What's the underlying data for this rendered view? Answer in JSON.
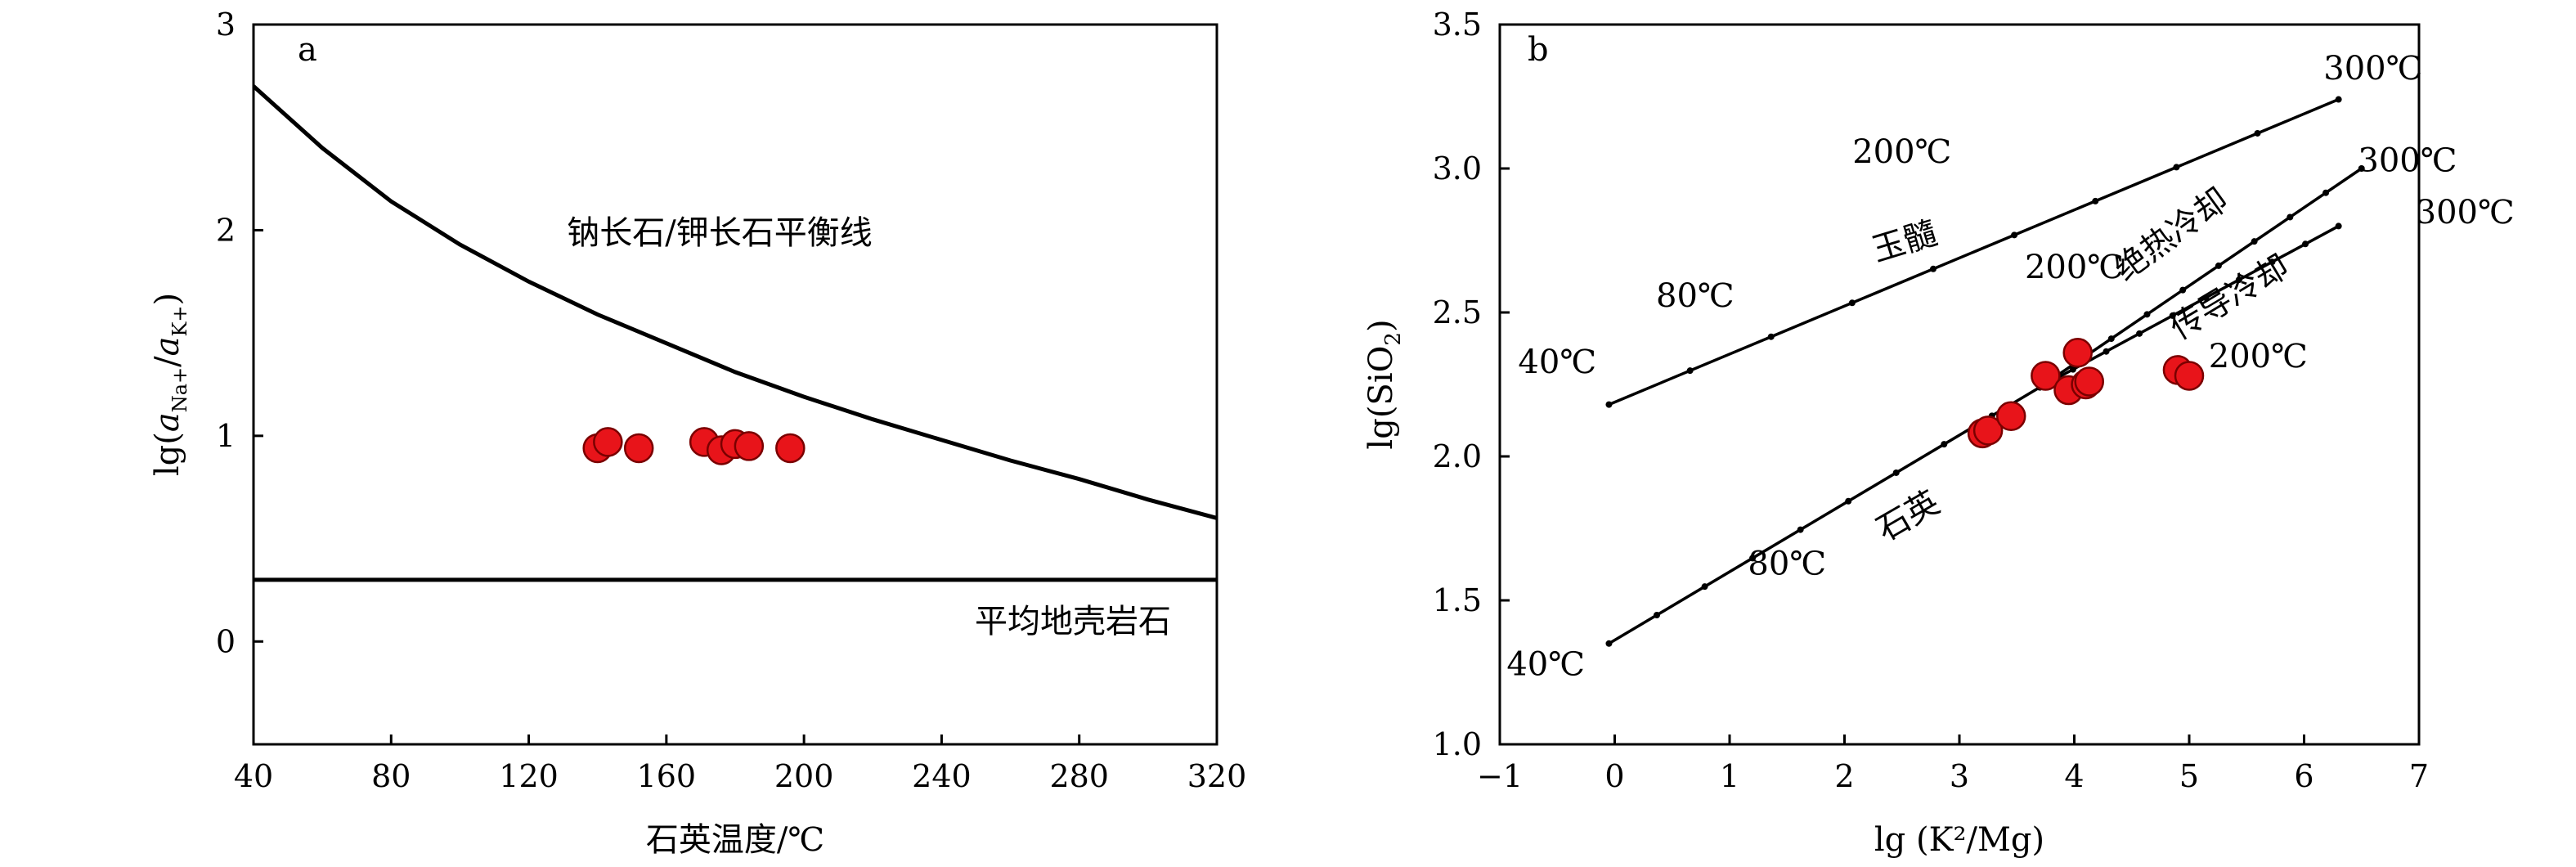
{
  "chart_data": [
    {
      "panel": "a",
      "type": "scatter",
      "xlabel": "石英温度/℃",
      "ylabel": {
        "base": "lg(",
        "a1": "a",
        "sub1": "Na+",
        "slash": "/",
        "a2": "a",
        "sub2": "K+",
        "close": ")"
      },
      "xlim": [
        40,
        320
      ],
      "ylim": [
        -0.5,
        3
      ],
      "xticks": [
        40,
        80,
        120,
        160,
        200,
        240,
        280,
        320
      ],
      "yticks": [
        0,
        1,
        2,
        3
      ],
      "grid": false,
      "curves": [
        {
          "label": "钠长石/钾长石平衡线",
          "x": [
            40,
            60,
            80,
            100,
            120,
            140,
            160,
            180,
            200,
            220,
            240,
            260,
            280,
            300,
            320
          ],
          "y": [
            2.7,
            2.4,
            2.14,
            1.93,
            1.75,
            1.59,
            1.45,
            1.31,
            1.19,
            1.08,
            0.98,
            0.88,
            0.79,
            0.69,
            0.6
          ]
        },
        {
          "label": "平均地壳岩石",
          "x": [
            40,
            320
          ],
          "y": [
            0.3,
            0.3
          ]
        }
      ],
      "points": {
        "x": [
          140,
          143,
          152,
          171,
          176,
          180,
          184,
          196
        ],
        "y": [
          0.94,
          0.97,
          0.94,
          0.97,
          0.93,
          0.96,
          0.95,
          0.94
        ],
        "color": "#e8141a"
      }
    },
    {
      "panel": "b",
      "type": "scatter",
      "xlabel": "lg (K²/Mg)",
      "ylabel": {
        "base": "lg(SiO",
        "sub": "2",
        "close": ")"
      },
      "xlim": [
        -1,
        7
      ],
      "ylim": [
        1.0,
        3.5
      ],
      "xticks": [
        -1,
        0,
        1,
        2,
        3,
        4,
        5,
        6,
        7
      ],
      "xtick_labels": [
        "−1",
        "0",
        "1",
        "2",
        "3",
        "4",
        "5",
        "6",
        "7"
      ],
      "yticks": [
        1.0,
        1.5,
        2.0,
        2.5,
        3.0,
        3.5
      ],
      "ytick_labels": [
        "1.0",
        "1.5",
        "2.0",
        "2.5",
        "3.0",
        "3.5"
      ],
      "grid": false,
      "curves": [
        {
          "label": "玉髓",
          "x": [
            -0.05,
            6.3
          ],
          "y": [
            2.18,
            3.24
          ]
        },
        {
          "label": "石英",
          "x": [
            -0.05,
            3.7
          ],
          "y": [
            1.35,
            2.24
          ]
        },
        {
          "label": "绝热冷却",
          "x": [
            3.7,
            6.5
          ],
          "y": [
            2.24,
            3.0
          ]
        },
        {
          "label": "传导冷却",
          "x": [
            3.7,
            6.3
          ],
          "y": [
            2.24,
            2.8
          ]
        }
      ],
      "temperature_labels": [
        {
          "text": "40℃",
          "x": -0.5,
          "y": 2.29
        },
        {
          "text": "80℃",
          "x": 0.7,
          "y": 2.52
        },
        {
          "text": "200℃",
          "x": 2.5,
          "y": 3.02
        },
        {
          "text": "300℃",
          "x": 6.6,
          "y": 3.31
        },
        {
          "text": "300℃",
          "x": 6.9,
          "y": 2.99
        },
        {
          "text": "300℃",
          "x": 7.4,
          "y": 2.81
        },
        {
          "text": "200℃",
          "x": 4.0,
          "y": 2.62
        },
        {
          "text": "200℃",
          "x": 5.6,
          "y": 2.31
        },
        {
          "text": "80℃",
          "x": 1.5,
          "y": 1.59
        },
        {
          "text": "40℃",
          "x": -0.6,
          "y": 1.24
        }
      ],
      "curve_labels": [
        {
          "text": "玉髓",
          "x": 2.55,
          "y": 2.71,
          "rotate": -17
        },
        {
          "text": "绝热冷却",
          "x": 4.9,
          "y": 2.74,
          "rotate": -36
        },
        {
          "text": "传导冷却",
          "x": 5.4,
          "y": 2.52,
          "rotate": -31
        },
        {
          "text": "石英",
          "x": 2.6,
          "y": 1.76,
          "rotate": -30
        }
      ],
      "points": {
        "x": [
          3.2,
          3.25,
          3.45,
          3.75,
          3.95,
          4.03,
          4.1,
          4.13,
          4.9,
          5.0
        ],
        "y": [
          2.08,
          2.09,
          2.14,
          2.28,
          2.23,
          2.36,
          2.25,
          2.26,
          2.3,
          2.28
        ],
        "color": "#e8141a"
      }
    }
  ]
}
